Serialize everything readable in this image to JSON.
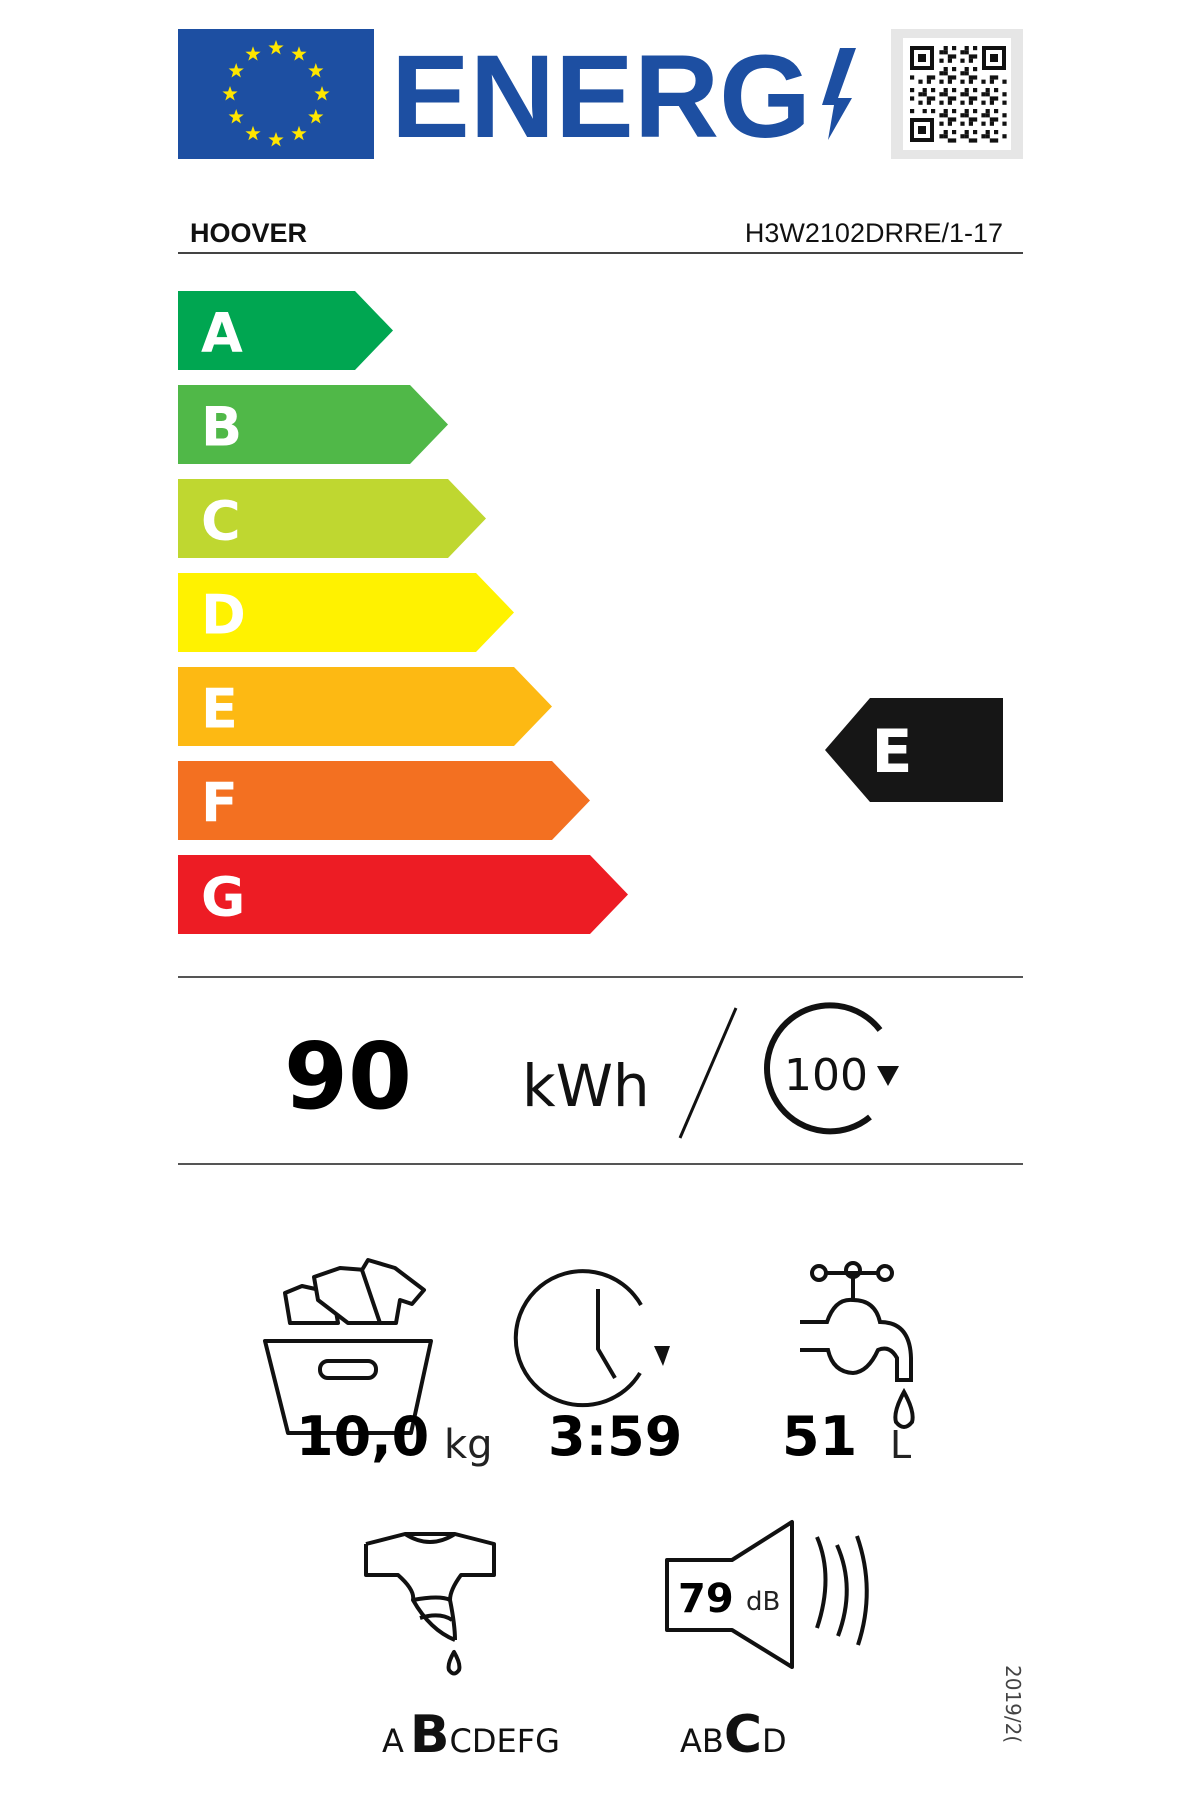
{
  "header": {
    "logo_text": "ENERG",
    "flag": "eu-flag",
    "qr": "qr-code"
  },
  "supplier": "HOOVER",
  "model": "H3W2102DRRE/1-17",
  "scale": {
    "classes": [
      {
        "letter": "A",
        "color": "#00a651"
      },
      {
        "letter": "B",
        "color": "#50b848"
      },
      {
        "letter": "C",
        "color": "#bfd730"
      },
      {
        "letter": "D",
        "color": "#fff200"
      },
      {
        "letter": "E",
        "color": "#fdb913"
      },
      {
        "letter": "F",
        "color": "#f37021"
      },
      {
        "letter": "G",
        "color": "#ed1c24"
      }
    ],
    "rated_class": "E"
  },
  "energy": {
    "value": "90",
    "unit": "kWh",
    "cycles": "100"
  },
  "specs": {
    "capacity_value": "10,0",
    "capacity_unit": "kg",
    "duration": "3:59",
    "water_value": "51",
    "water_unit": "L",
    "noise_value": "79",
    "noise_unit": "dB"
  },
  "spin_class": {
    "before": "A",
    "active": "B",
    "after": "CDEFG"
  },
  "noise_class": {
    "before": "AB",
    "active": "C",
    "after": "D"
  },
  "regulation": "2019/2("
}
